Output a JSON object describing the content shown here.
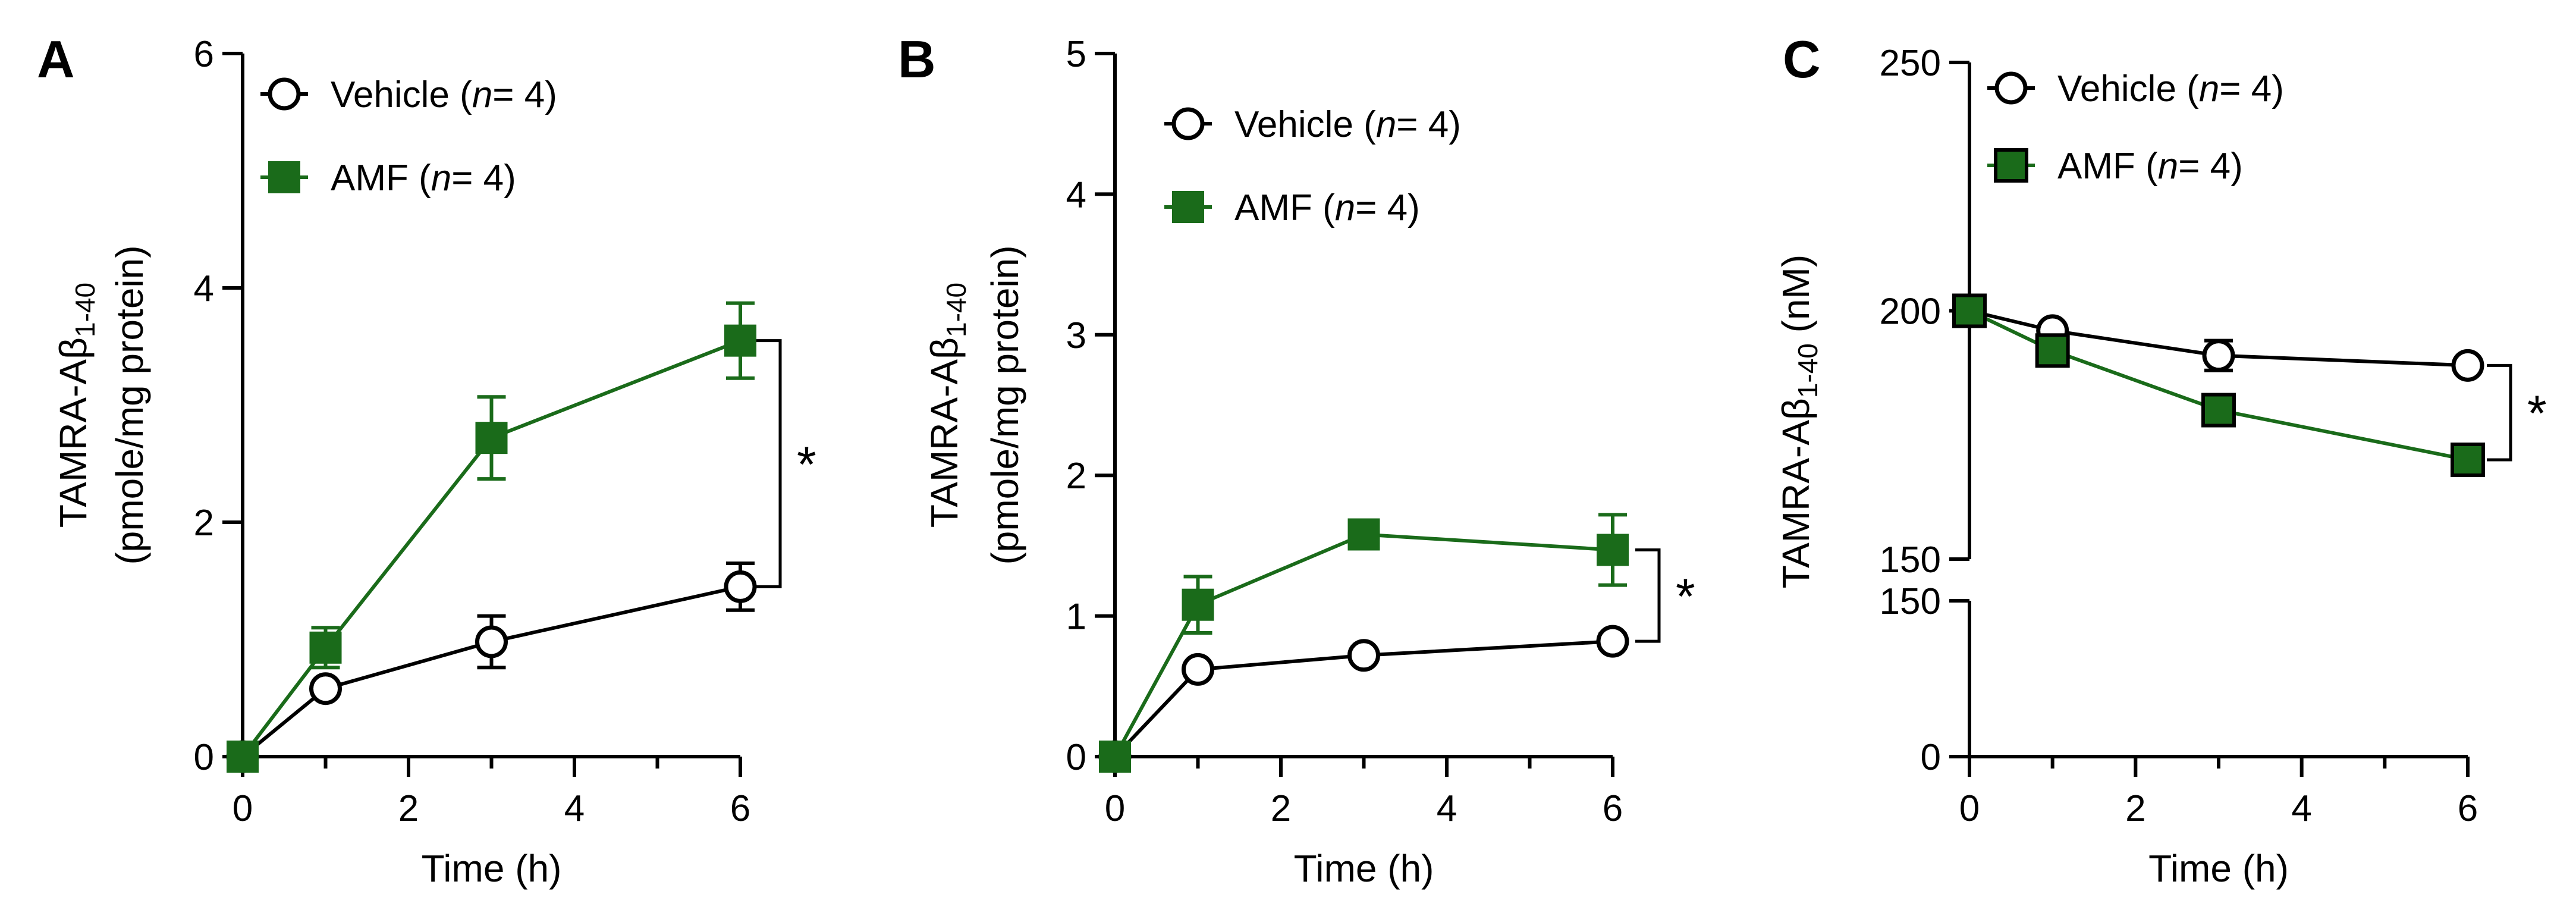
{
  "colors": {
    "vehicle": "#000000",
    "amf": "#1a6b1a",
    "axis": "#000000"
  },
  "chart_data": [
    {
      "type": "line",
      "panel": "A",
      "xlabel": "Time (h)",
      "ylabel_line1_prefix": "TAMRA-A",
      "ylabel_line1_greek": "β",
      "ylabel_line1_sub": "1-40",
      "ylabel_line2": "(pmole/mg protein)",
      "xlim": [
        0,
        6
      ],
      "ylim": [
        0,
        6
      ],
      "xticks": [
        0,
        2,
        4,
        6
      ],
      "yticks": [
        0,
        2,
        4,
        6
      ],
      "legend_placement": "top-left",
      "significance": "*",
      "series": [
        {
          "name": "Vehicle",
          "n_label": "n",
          "n_value": "= 4)",
          "marker": "open-circle",
          "x": [
            0,
            1,
            3,
            6
          ],
          "y": [
            0,
            0.58,
            0.98,
            1.45
          ],
          "err": [
            0,
            0.05,
            0.22,
            0.2
          ]
        },
        {
          "name": "AMF",
          "n_label": "n",
          "n_value": "= 4)",
          "marker": "filled-square",
          "x": [
            0,
            1,
            3,
            6
          ],
          "y": [
            0,
            0.93,
            2.72,
            3.55
          ],
          "err": [
            0,
            0.17,
            0.35,
            0.32
          ]
        }
      ]
    },
    {
      "type": "line",
      "panel": "B",
      "xlabel": "Time (h)",
      "ylabel_line1_prefix": "TAMRA-A",
      "ylabel_line1_greek": "β",
      "ylabel_line1_sub": "1-40",
      "ylabel_line2": "(pmole/mg protein)",
      "xlim": [
        0,
        6
      ],
      "ylim": [
        0,
        5
      ],
      "xticks": [
        0,
        2,
        4,
        6
      ],
      "yticks": [
        0,
        1,
        2,
        3,
        4,
        5
      ],
      "legend_placement": "top-right",
      "significance": "*",
      "series": [
        {
          "name": "Vehicle",
          "n_label": "n",
          "n_value": "= 4)",
          "marker": "open-circle",
          "x": [
            0,
            1,
            3,
            6
          ],
          "y": [
            0,
            0.62,
            0.72,
            0.82
          ],
          "err": [
            0,
            0.04,
            0.04,
            0.05
          ]
        },
        {
          "name": "AMF",
          "n_label": "n",
          "n_value": "= 4)",
          "marker": "filled-square",
          "x": [
            0,
            1,
            3,
            6
          ],
          "y": [
            0,
            1.08,
            1.58,
            1.47
          ],
          "err": [
            0,
            0.2,
            0.04,
            0.25
          ]
        }
      ]
    },
    {
      "type": "line",
      "panel": "C",
      "xlabel": "Time (h)",
      "ylabel_line1_prefix": "TAMRA-A",
      "ylabel_line1_greek": "β",
      "ylabel_line1_sub": "1-40",
      "ylabel_unit": " (nM)",
      "xlim": [
        0,
        6
      ],
      "y_broken_axis": true,
      "lower_segment": {
        "ylim": [
          0,
          150
        ],
        "yticks": [
          0,
          150
        ]
      },
      "upper_segment": {
        "ylim": [
          150,
          250
        ],
        "yticks": [
          150,
          200,
          250
        ]
      },
      "xticks": [
        0,
        2,
        4,
        6
      ],
      "legend_placement": "top-right",
      "significance": "*",
      "series": [
        {
          "name": "Vehicle",
          "n_label": "n",
          "n_value": "= 4)",
          "marker": "open-circle",
          "x": [
            0,
            1,
            3,
            6
          ],
          "y": [
            200,
            196,
            191,
            189
          ],
          "err": [
            0,
            1,
            3,
            1
          ]
        },
        {
          "name": "AMF",
          "n_label": "n",
          "n_value": "= 4)",
          "marker": "filled-square",
          "x": [
            0,
            1,
            3,
            6
          ],
          "y": [
            200,
            192,
            180,
            170
          ],
          "err": [
            0,
            1,
            2,
            1
          ]
        }
      ]
    }
  ]
}
